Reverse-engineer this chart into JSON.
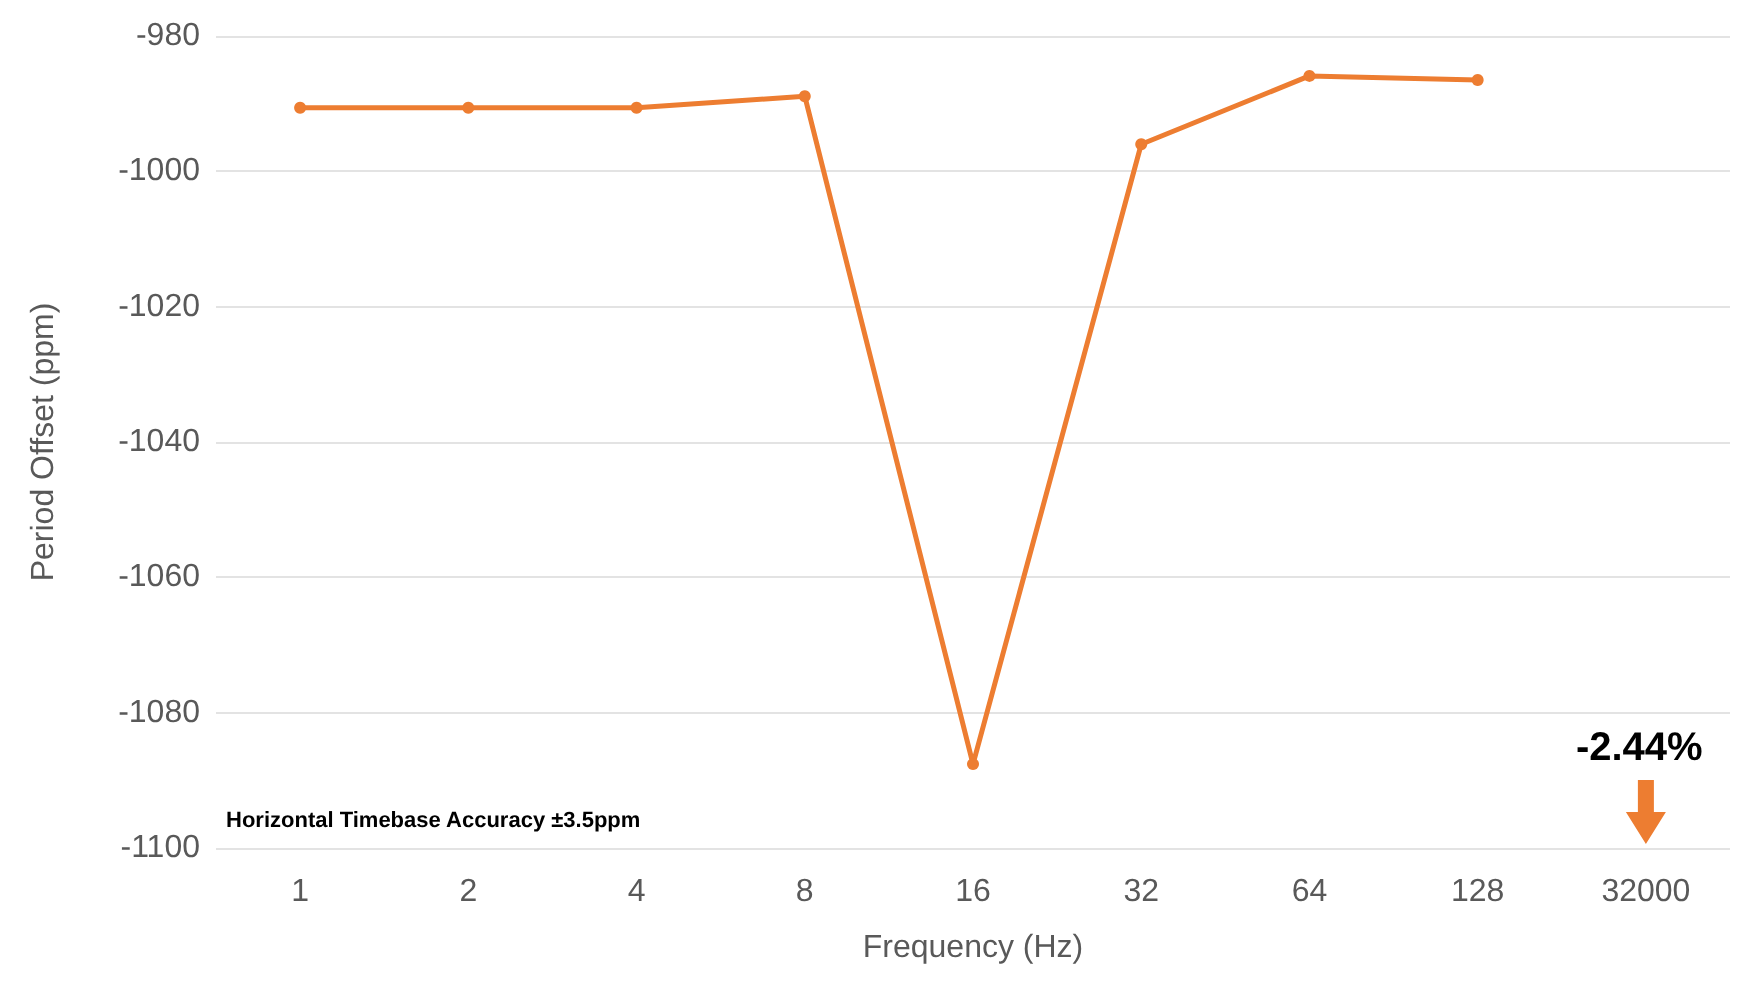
{
  "chart_data": {
    "type": "line",
    "xlabel": "Frequency (Hz)",
    "ylabel": "Period Offset (ppm)",
    "categories": [
      "1",
      "2",
      "4",
      "8",
      "16",
      "32",
      "64",
      "128",
      "32000"
    ],
    "series": [
      {
        "color": "#ed7d31",
        "values": [
          -990.6,
          -990.6,
          -990.6,
          -988.9,
          -1087.6,
          -996,
          -985.9,
          -986.5,
          null
        ]
      }
    ],
    "ylim": [
      -1100,
      -980
    ],
    "yticks": [
      -1100,
      -1080,
      -1060,
      -1040,
      -1020,
      -1000,
      -980
    ],
    "grid": "y",
    "marker": "circle",
    "line_style": "solid",
    "annotations": [
      "Horizontal Timebase Accuracy ±3.5ppm",
      "-2.44%"
    ]
  }
}
